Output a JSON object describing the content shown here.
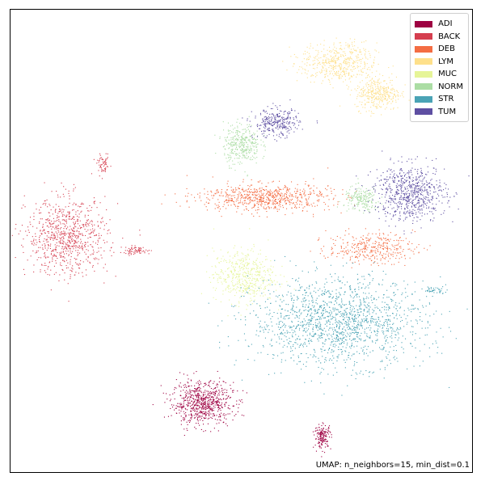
{
  "chart_data": {
    "type": "scatter",
    "title": "",
    "xlabel": "",
    "ylabel": "",
    "grid": false,
    "axes_ticks": false,
    "legend_position": "top-right",
    "xlim": [
      0,
      100
    ],
    "ylim": [
      0,
      100
    ],
    "annotation": "UMAP: n_neighbors=15, min_dist=0.1",
    "series": [
      {
        "name": "ADI",
        "color": "#9e0142",
        "clusters": [
          {
            "cx": 41.5,
            "cy": 15.0,
            "rx": 6.0,
            "ry": 4.2,
            "n": 700
          },
          {
            "cx": 67.6,
            "cy": 7.8,
            "rx": 1.6,
            "ry": 2.4,
            "n": 160
          }
        ]
      },
      {
        "name": "BACK",
        "color": "#d53e4f",
        "clusters": [
          {
            "cx": 12.2,
            "cy": 51.0,
            "rx": 8.0,
            "ry": 7.5,
            "n": 800
          },
          {
            "cx": 20.0,
            "cy": 66.5,
            "rx": 1.2,
            "ry": 1.8,
            "n": 60
          },
          {
            "cx": 27.0,
            "cy": 48.0,
            "rx": 3.0,
            "ry": 0.8,
            "n": 70
          }
        ]
      },
      {
        "name": "DEB",
        "color": "#f46d43",
        "clusters": [
          {
            "cx": 55.0,
            "cy": 59.5,
            "rx": 13.0,
            "ry": 2.7,
            "n": 700
          },
          {
            "cx": 78.0,
            "cy": 48.5,
            "rx": 8.5,
            "ry": 3.0,
            "n": 350
          }
        ]
      },
      {
        "name": "LYM",
        "color": "#fee08b",
        "clusters": [
          {
            "cx": 71.0,
            "cy": 88.5,
            "rx": 7.5,
            "ry": 4.0,
            "n": 500
          },
          {
            "cx": 79.5,
            "cy": 82.0,
            "rx": 4.5,
            "ry": 3.3,
            "n": 350
          }
        ]
      },
      {
        "name": "MUC",
        "color": "#e6f598",
        "clusters": [
          {
            "cx": 50.5,
            "cy": 42.5,
            "rx": 6.0,
            "ry": 5.2,
            "n": 500
          }
        ]
      },
      {
        "name": "NORM",
        "color": "#abdda4",
        "clusters": [
          {
            "cx": 50.0,
            "cy": 71.0,
            "rx": 3.6,
            "ry": 4.0,
            "n": 350
          },
          {
            "cx": 76.0,
            "cy": 59.0,
            "rx": 3.5,
            "ry": 2.5,
            "n": 200
          }
        ]
      },
      {
        "name": "STR",
        "color": "#4aa3b5",
        "clusters": [
          {
            "cx": 71.0,
            "cy": 32.5,
            "rx": 17.0,
            "ry": 8.5,
            "n": 1600
          },
          {
            "cx": 91.5,
            "cy": 39.5,
            "rx": 2.0,
            "ry": 0.6,
            "n": 40
          }
        ]
      },
      {
        "name": "TUM",
        "color": "#5e4fa2",
        "clusters": [
          {
            "cx": 57.5,
            "cy": 75.5,
            "rx": 4.5,
            "ry": 2.8,
            "n": 300
          },
          {
            "cx": 86.5,
            "cy": 60.5,
            "rx": 7.0,
            "ry": 5.5,
            "n": 700
          }
        ]
      }
    ]
  }
}
